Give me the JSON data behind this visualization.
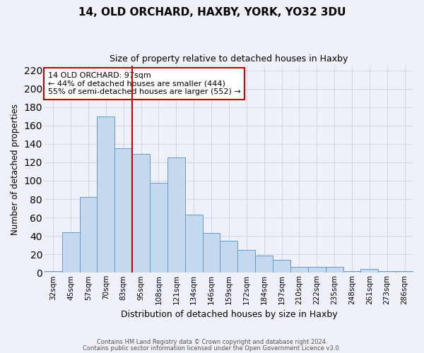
{
  "title1": "14, OLD ORCHARD, HAXBY, YORK, YO32 3DU",
  "title2": "Size of property relative to detached houses in Haxby",
  "xlabel": "Distribution of detached houses by size in Haxby",
  "ylabel": "Number of detached properties",
  "bar_labels": [
    "32sqm",
    "45sqm",
    "57sqm",
    "70sqm",
    "83sqm",
    "95sqm",
    "108sqm",
    "121sqm",
    "134sqm",
    "146sqm",
    "159sqm",
    "172sqm",
    "184sqm",
    "197sqm",
    "210sqm",
    "222sqm",
    "235sqm",
    "248sqm",
    "261sqm",
    "273sqm",
    "286sqm"
  ],
  "bar_values": [
    2,
    44,
    82,
    170,
    135,
    129,
    98,
    125,
    63,
    43,
    35,
    25,
    19,
    14,
    6,
    6,
    6,
    2,
    4,
    2,
    2
  ],
  "bar_color": "#c5d9ee",
  "bar_edge_color": "#6699cc",
  "grid_color": "#d0d8e8",
  "vline_x": 4.5,
  "vline_color": "#cc0000",
  "annotation_title": "14 OLD ORCHARD: 97sqm",
  "annotation_line1": "← 44% of detached houses are smaller (444)",
  "annotation_line2": "55% of semi-detached houses are larger (552) →",
  "annotation_box_color": "white",
  "annotation_box_edge": "#cc0000",
  "ylim": [
    0,
    225
  ],
  "yticks": [
    0,
    20,
    40,
    60,
    80,
    100,
    120,
    140,
    160,
    180,
    200,
    220
  ],
  "footer1": "Contains HM Land Registry data © Crown copyright and database right 2024.",
  "footer2": "Contains public sector information licensed under the Open Government Licence v3.0.",
  "background_color": "#eef2f8"
}
